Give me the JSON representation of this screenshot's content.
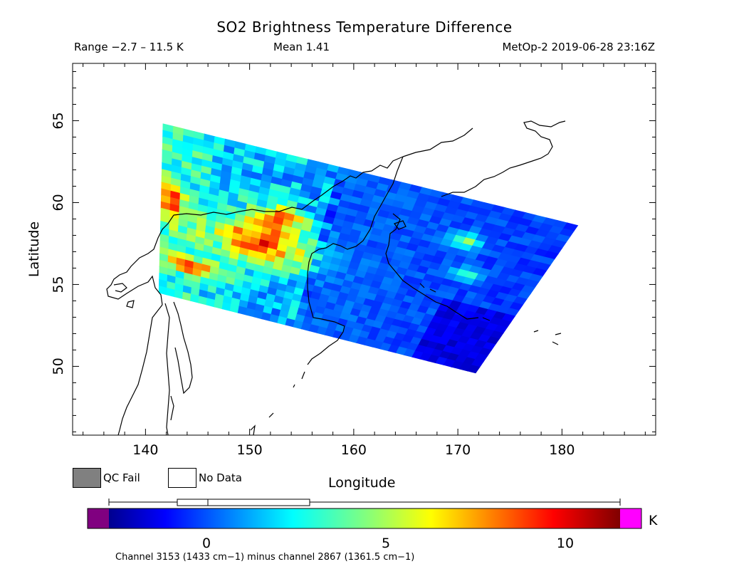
{
  "title": "SO2 Brightness Temperature Difference",
  "header": {
    "range": "Range −2.7 – 11.5 K",
    "mean": "Mean 1.41",
    "satellite_time": "MetOp-2 2019-06-28 23:16Z"
  },
  "axes": {
    "xlabel": "Longitude",
    "ylabel": "Latitude",
    "x_ticks": [
      "140",
      "150",
      "160",
      "170",
      "180"
    ],
    "y_ticks": [
      "50",
      "55",
      "60",
      "65"
    ]
  },
  "legend": {
    "qc_fail": "QC Fail",
    "no_data": "No Data",
    "qc_fail_color": "#808080",
    "no_data_color": "#ffffff"
  },
  "colorbar": {
    "unit": "K",
    "ticks": [
      "0",
      "5",
      "10"
    ],
    "under_color": "#800080",
    "over_color": "#ff00ff",
    "footnote": "Channel 3153 (1433 cm−1) minus channel 2867 (1361.5 cm−1)"
  },
  "chart_data": {
    "type": "heatmap",
    "title": "SO2 Brightness Temperature Difference",
    "xlabel": "Longitude",
    "ylabel": "Latitude",
    "xlim": [
      133,
      189
    ],
    "ylim": [
      45.8,
      68.5
    ],
    "value_range": [
      -2.7,
      11.5
    ],
    "mean": 1.41,
    "colorbar_range": [
      -3,
      11.5
    ],
    "unit": "K",
    "colormap": "jet",
    "swath_corners": {
      "top_left": [
        141.7,
        64.8
      ],
      "top_right": [
        181.5,
        58.6
      ],
      "bottom_right": [
        171.7,
        49.6
      ],
      "bottom_left": [
        141.3,
        54.5
      ]
    },
    "features": [
      {
        "region": "Sea of Okhotsk, north-west (lon 145–158, lat 56–60)",
        "level": "high",
        "approx_K": [
          7,
          11
        ]
      },
      {
        "region": "Kamchatka and Bering Sea (lon 160–180)",
        "level": "low",
        "approx_K": [
          -1,
          1
        ]
      }
    ]
  }
}
